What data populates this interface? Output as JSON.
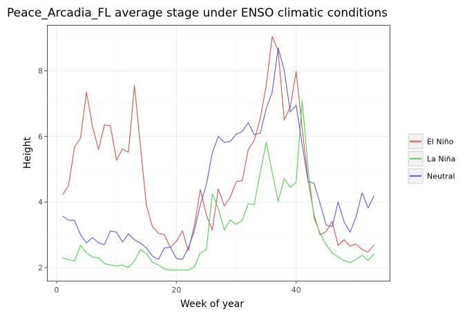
{
  "chart_data": {
    "type": "line",
    "title": "Peace_Arcadia_FL average stage under ENSO climatic conditions",
    "xlabel": "Week of year",
    "ylabel": "Height",
    "xlim": [
      -1.6,
      55.6
    ],
    "ylim": [
      1.6,
      9.4
    ],
    "x_ticks": [
      0,
      20,
      40
    ],
    "y_ticks": [
      2,
      4,
      6,
      8
    ],
    "grid": true,
    "legend_position": "right",
    "x": [
      1,
      2,
      3,
      4,
      5,
      6,
      7,
      8,
      9,
      10,
      11,
      12,
      13,
      14,
      15,
      16,
      17,
      18,
      19,
      20,
      21,
      22,
      23,
      24,
      25,
      26,
      27,
      28,
      29,
      30,
      31,
      32,
      33,
      34,
      35,
      36,
      37,
      38,
      39,
      40,
      41,
      42,
      43,
      44,
      45,
      46,
      47,
      48,
      49,
      50,
      51,
      52,
      53
    ],
    "series": [
      {
        "name": "El Niño",
        "color": "#d4534a",
        "values": [
          4.22,
          4.5,
          5.68,
          5.95,
          7.35,
          6.3,
          5.6,
          6.35,
          6.32,
          5.27,
          5.62,
          5.52,
          7.55,
          5.7,
          3.9,
          3.25,
          3.05,
          3.0,
          2.62,
          2.8,
          3.12,
          2.52,
          3.28,
          4.38,
          3.6,
          3.15,
          4.4,
          3.88,
          4.15,
          4.62,
          4.65,
          5.6,
          5.88,
          6.55,
          7.55,
          9.05,
          8.6,
          6.5,
          6.9,
          7.98,
          6.25,
          4.65,
          3.6,
          3.0,
          3.1,
          3.4,
          2.68,
          2.85,
          2.65,
          2.72,
          2.55,
          2.47,
          2.7
        ]
      },
      {
        "name": "La Niña",
        "color": "#4ed24e",
        "values": [
          2.3,
          2.24,
          2.2,
          2.68,
          2.45,
          2.32,
          2.3,
          2.12,
          2.08,
          2.05,
          2.08,
          2.0,
          2.2,
          2.55,
          2.42,
          2.17,
          2.08,
          1.96,
          1.93,
          1.93,
          1.93,
          1.92,
          2.02,
          2.45,
          2.55,
          4.25,
          3.8,
          3.15,
          3.45,
          3.32,
          3.45,
          3.95,
          3.92,
          4.9,
          5.82,
          4.9,
          4.02,
          4.72,
          4.45,
          4.6,
          7.1,
          5.0,
          3.5,
          3.05,
          2.7,
          2.45,
          2.32,
          2.22,
          2.15,
          2.25,
          2.38,
          2.22,
          2.42
        ]
      },
      {
        "name": "Neutral",
        "color": "#5a5ad8",
        "values": [
          3.57,
          3.45,
          3.44,
          3.0,
          2.75,
          2.92,
          2.75,
          2.7,
          3.12,
          3.08,
          2.78,
          3.03,
          2.85,
          2.75,
          2.6,
          2.35,
          2.25,
          2.6,
          2.62,
          2.28,
          2.25,
          2.6,
          3.12,
          3.92,
          4.52,
          5.5,
          6.0,
          5.82,
          5.85,
          6.07,
          6.15,
          6.42,
          6.05,
          6.1,
          6.85,
          7.35,
          8.7,
          8.02,
          6.75,
          6.95,
          5.75,
          4.62,
          4.57,
          3.95,
          3.3,
          3.25,
          4.0,
          3.4,
          3.08,
          3.55,
          4.28,
          3.82,
          4.2
        ]
      }
    ]
  }
}
